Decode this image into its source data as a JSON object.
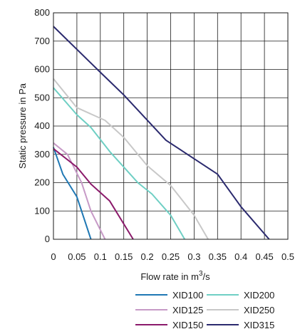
{
  "chart_data": {
    "type": "line",
    "xlabel": "Flow rate in m",
    "xlabel_unit_sup": "3",
    "xlabel_unit_tail": "/s",
    "ylabel": "Static pressure in Pa",
    "xlim": [
      0,
      0.5
    ],
    "ylim": [
      0,
      800
    ],
    "x_ticks": [
      0,
      0.05,
      0.1,
      0.15,
      0.2,
      0.25,
      0.3,
      0.35,
      0.4,
      0.45,
      0.5
    ],
    "x_tick_labels": [
      "0",
      "0.05",
      "0.1",
      "0.15",
      "0.2",
      "0.25",
      "0.3",
      "0.35",
      "0.4",
      "0.45",
      "0.5"
    ],
    "y_ticks": [
      0,
      100,
      200,
      300,
      400,
      500,
      600,
      700,
      800
    ],
    "y_tick_labels": [
      "0",
      "100",
      "200",
      "300",
      "400",
      "500",
      "600",
      "700",
      "800"
    ],
    "grid": true,
    "legend_position": "bottom-right",
    "series": [
      {
        "name": "XID100",
        "color": "#1f78b4",
        "points": [
          [
            0,
            325
          ],
          [
            0.02,
            230
          ],
          [
            0.05,
            150
          ],
          [
            0.08,
            0
          ]
        ]
      },
      {
        "name": "XID125",
        "color": "#c79ac7",
        "points": [
          [
            0,
            340
          ],
          [
            0.03,
            300
          ],
          [
            0.06,
            200
          ],
          [
            0.08,
            100
          ],
          [
            0.11,
            0
          ]
        ]
      },
      {
        "name": "XID150",
        "color": "#8b1a6b",
        "points": [
          [
            0,
            320
          ],
          [
            0.05,
            255
          ],
          [
            0.08,
            195
          ],
          [
            0.12,
            135
          ],
          [
            0.17,
            0
          ]
        ]
      },
      {
        "name": "XID200",
        "color": "#6fcfc4",
        "points": [
          [
            0,
            535
          ],
          [
            0.05,
            440
          ],
          [
            0.08,
            395
          ],
          [
            0.12,
            310
          ],
          [
            0.15,
            255
          ],
          [
            0.18,
            200
          ],
          [
            0.21,
            160
          ],
          [
            0.25,
            85
          ],
          [
            0.28,
            0
          ]
        ]
      },
      {
        "name": "XID250",
        "color": "#c8c8c8",
        "points": [
          [
            0,
            567
          ],
          [
            0.05,
            465
          ],
          [
            0.11,
            420
          ],
          [
            0.15,
            360
          ],
          [
            0.2,
            260
          ],
          [
            0.25,
            190
          ],
          [
            0.3,
            85
          ],
          [
            0.33,
            0
          ]
        ]
      },
      {
        "name": "XID315",
        "color": "#2b2a6e",
        "points": [
          [
            0,
            752
          ],
          [
            0.1,
            590
          ],
          [
            0.15,
            510
          ],
          [
            0.24,
            350
          ],
          [
            0.35,
            230
          ],
          [
            0.4,
            115
          ],
          [
            0.46,
            0
          ]
        ]
      }
    ]
  }
}
